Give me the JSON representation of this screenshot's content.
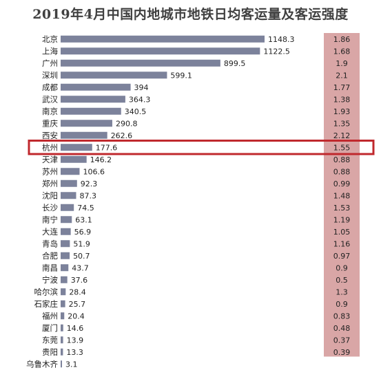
{
  "chart_data": {
    "type": "bar",
    "title": "2019年4月中国内地城市地铁日均客运量及客运强度",
    "categories": [
      "北京",
      "上海",
      "广州",
      "深圳",
      "成都",
      "武汉",
      "南京",
      "重庆",
      "西安",
      "杭州",
      "天津",
      "苏州",
      "郑州",
      "沈阳",
      "长沙",
      "南宁",
      "大连",
      "青岛",
      "合肥",
      "南昌",
      "宁波",
      "哈尔滨",
      "石家庄",
      "福州",
      "厦门",
      "东莞",
      "贵阳",
      "乌鲁木齐"
    ],
    "series": [
      {
        "values": [
          1148.3,
          1122.5,
          899.5,
          599.1,
          394,
          364.3,
          340.5,
          290.8,
          262.6,
          177.6,
          146.2,
          106.6,
          92.3,
          87.3,
          74.5,
          63.1,
          56.9,
          51.9,
          50.7,
          43.7,
          37.6,
          28.4,
          25.7,
          20.4,
          14.6,
          13.9,
          13.3,
          3.1
        ],
        "color": "#7c829b"
      },
      {
        "values": [
          1.86,
          1.68,
          1.9,
          2.1,
          1.77,
          1.38,
          1.93,
          1.35,
          2.12,
          1.55,
          0.88,
          0.88,
          0.99,
          1.48,
          1.53,
          1.19,
          1.05,
          1.16,
          0.97,
          0.9,
          0.5,
          1.3,
          0.9,
          0.83,
          0.48,
          0.37,
          0.39,
          null
        ],
        "color": "#d9a6a6"
      }
    ],
    "highlight": {
      "category": "杭州",
      "color": "#c0282d"
    },
    "xlim": [
      0,
      1148.3
    ]
  }
}
